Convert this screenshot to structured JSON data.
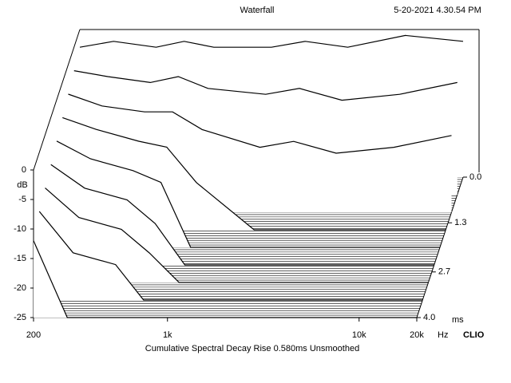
{
  "chart_data": {
    "type": "waterfall",
    "title": "Waterfall",
    "timestamp": "5-20-2021 4.30.54 PM",
    "footer": "Cumulative Spectral Decay   Rise 0.580ms   Unsmoothed",
    "brand": "CLIO",
    "y_label": "dB",
    "x_unit": "Hz",
    "z_unit": "ms",
    "x_log": true,
    "x": [
      200,
      300,
      500,
      700,
      1000,
      2000,
      3000,
      5000,
      10000,
      20000
    ],
    "xlim": [
      200,
      20000
    ],
    "xticks": [
      200,
      {
        "value": 1000,
        "label": "1k"
      },
      {
        "value": 10000,
        "label": "10k"
      },
      {
        "value": 20000,
        "label": "20k"
      }
    ],
    "ylim": [
      -25,
      0
    ],
    "yticks": [
      0,
      -5,
      -10,
      -15,
      -20,
      -25
    ],
    "zlim": [
      0,
      4
    ],
    "zticks": [
      {
        "value": 0,
        "label": "0.0"
      },
      1.3,
      2.7,
      {
        "value": 4,
        "label": "4.0"
      }
    ],
    "series": [
      {
        "time": 0,
        "values": [
          -3,
          -2,
          -3,
          -2,
          -3,
          -3,
          -2,
          -3,
          -1,
          -2
        ]
      },
      {
        "time": 0.5,
        "values": [
          -4,
          -5,
          -6,
          -5,
          -7,
          -8,
          -7,
          -9,
          -8,
          -6
        ]
      },
      {
        "time": 1.0,
        "values": [
          -5,
          -7,
          -8,
          -8,
          -11,
          -14,
          -13,
          -15,
          -14,
          -12
        ]
      },
      {
        "time": 1.5,
        "values": [
          -6,
          -8,
          -10,
          -11,
          -17,
          -25,
          -25,
          -25,
          -25,
          -25
        ]
      },
      {
        "time": 2.0,
        "values": [
          -7,
          -10,
          -12,
          -14,
          -25,
          -25,
          -25,
          -25,
          -25,
          -25
        ]
      },
      {
        "time": 2.5,
        "values": [
          -8,
          -12,
          -14,
          -18,
          -25,
          -25,
          -25,
          -25,
          -25,
          -25
        ]
      },
      {
        "time": 3.0,
        "values": [
          -9,
          -14,
          -16,
          -20,
          -25,
          -25,
          -25,
          -25,
          -25,
          -25
        ]
      },
      {
        "time": 3.5,
        "values": [
          -10,
          -17,
          -19,
          -25,
          -25,
          -25,
          -25,
          -25,
          -25,
          -25
        ]
      },
      {
        "time": 4.0,
        "values": [
          -12,
          -25,
          -25,
          -25,
          -25,
          -25,
          -25,
          -25,
          -25,
          -25
        ]
      }
    ]
  }
}
